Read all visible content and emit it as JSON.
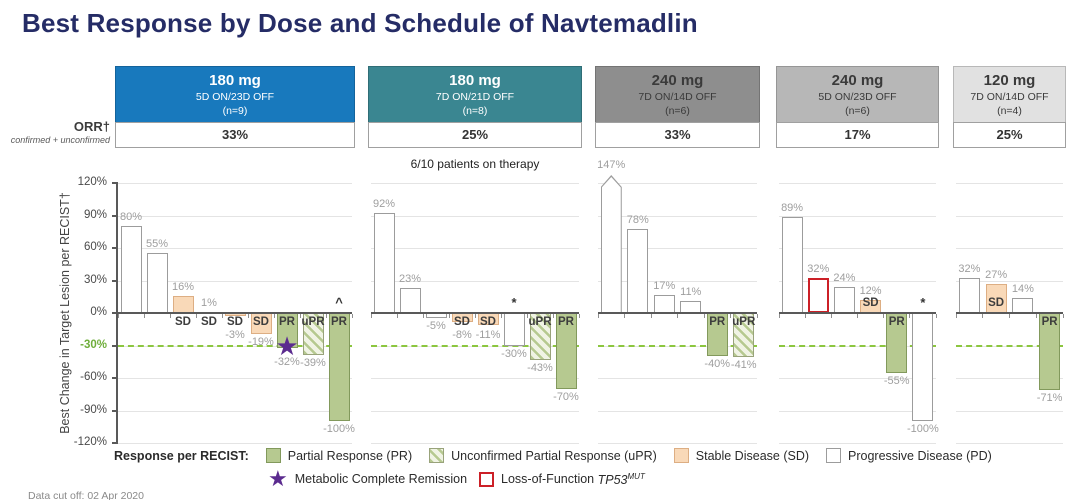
{
  "title": "Best Response by Dose and Schedule of Navtemadlin",
  "orr": {
    "label": "ORR†",
    "sublabel": "confirmed + unconfirmed"
  },
  "note": "6/10 patients on therapy",
  "footer": "Data cut off: 02 Apr 2020",
  "colors": {
    "title": "#252c66",
    "cohort_blue": "#1879bd",
    "cohort_teal": "#3a8691",
    "cohort_dark_gray": "#8e8e8e",
    "cohort_mid_gray": "#b7b7b7",
    "cohort_light_gray": "#e1e1e1",
    "pr_green": "#b6c990",
    "sd_orange": "#f9d9b8",
    "reference_green": "#8cc63f",
    "star_purple": "#5b2b8f",
    "tp53_red": "#cc2027"
  },
  "legend": {
    "prefix": "Response per RECIST:",
    "items": [
      {
        "key": "PR",
        "label": "Partial Response (PR)"
      },
      {
        "key": "uPR",
        "label": "Unconfirmed Partial Response (uPR)"
      },
      {
        "key": "SD",
        "label": "Stable Disease (SD)"
      },
      {
        "key": "PD",
        "label": "Progressive Disease (PD)"
      }
    ],
    "star_label": "Metabolic Complete Remission",
    "tp53": {
      "prefix": "Loss-of-Function ",
      "gene": "TP53",
      "sup": "MUT"
    }
  },
  "chart_data": {
    "type": "bar",
    "title": "Best Response by Dose and Schedule of Navtemadlin",
    "ylabel": "Best Change in Target Lesion per RECIST†",
    "ylim": [
      -120,
      120
    ],
    "yticks": [
      120,
      90,
      60,
      30,
      0,
      -30,
      -60,
      -90,
      -120
    ],
    "reference_line": -30,
    "grid": true,
    "cohorts": [
      {
        "dose": "180 mg",
        "schedule": "5D ON/23D OFF",
        "n": "(n=9)",
        "orr": "33%",
        "header_bg": "#1879bd",
        "header_fg": "#ffffff",
        "bars": [
          {
            "value": 80,
            "type": "PD"
          },
          {
            "value": 55,
            "type": "PD"
          },
          {
            "value": 16,
            "type": "SD",
            "label": "SD"
          },
          {
            "value": 1,
            "type": "SD",
            "label": "SD"
          },
          {
            "value": -3,
            "type": "SD",
            "label": "SD"
          },
          {
            "value": -19,
            "type": "SD",
            "label": "SD"
          },
          {
            "value": -32,
            "type": "PR",
            "label": "PR",
            "marker": "star"
          },
          {
            "value": -39,
            "type": "uPR",
            "label": "uPR"
          },
          {
            "value": -100,
            "type": "PR",
            "label": "PR",
            "annotation": "^"
          }
        ]
      },
      {
        "dose": "180 mg",
        "schedule": "7D ON/21D OFF",
        "n": "(n=8)",
        "orr": "25%",
        "header_bg": "#3a8691",
        "header_fg": "#ffffff",
        "bars": [
          {
            "value": 92,
            "type": "PD"
          },
          {
            "value": 23,
            "type": "PD"
          },
          {
            "value": -5,
            "type": "PD"
          },
          {
            "value": -8,
            "type": "SD",
            "label": "SD"
          },
          {
            "value": -11,
            "type": "SD",
            "label": "SD"
          },
          {
            "value": -30,
            "type": "PD",
            "annotation": "*"
          },
          {
            "value": -43,
            "type": "uPR",
            "label": "uPR"
          },
          {
            "value": -70,
            "type": "PR",
            "label": "PR"
          }
        ]
      },
      {
        "dose": "240 mg",
        "schedule": "7D ON/14D OFF",
        "n": "(n=6)",
        "orr": "33%",
        "header_bg": "#8e8e8e",
        "header_fg": "#3a3a3a",
        "bars": [
          {
            "value": 147,
            "type": "PD",
            "exceeds_axis": true
          },
          {
            "value": 78,
            "type": "PD"
          },
          {
            "value": 17,
            "type": "PD"
          },
          {
            "value": 11,
            "type": "PD"
          },
          {
            "value": -40,
            "type": "PR",
            "label": "PR"
          },
          {
            "value": -41,
            "type": "uPR",
            "label": "uPR"
          }
        ]
      },
      {
        "dose": "240 mg",
        "schedule": "5D ON/23D OFF",
        "n": "(n=6)",
        "orr": "17%",
        "header_bg": "#b7b7b7",
        "header_fg": "#3a3a3a",
        "bars": [
          {
            "value": 89,
            "type": "PD"
          },
          {
            "value": 32,
            "type": "PD",
            "red_outline": true
          },
          {
            "value": 24,
            "type": "PD"
          },
          {
            "value": 12,
            "type": "SD",
            "label": "SD",
            "label_above": true
          },
          {
            "value": -55,
            "type": "PR",
            "label": "PR"
          },
          {
            "value": -100,
            "type": "PD",
            "annotation": "*"
          }
        ]
      },
      {
        "dose": "120 mg",
        "schedule": "7D ON/14D OFF",
        "n": "(n=4)",
        "orr": "25%",
        "header_bg": "#e1e1e1",
        "header_fg": "#3a3a3a",
        "bars": [
          {
            "value": 32,
            "type": "PD"
          },
          {
            "value": 27,
            "type": "SD",
            "label": "SD",
            "label_above": true
          },
          {
            "value": 14,
            "type": "PD"
          },
          {
            "value": -71,
            "type": "PR",
            "label": "PR"
          }
        ]
      }
    ]
  }
}
